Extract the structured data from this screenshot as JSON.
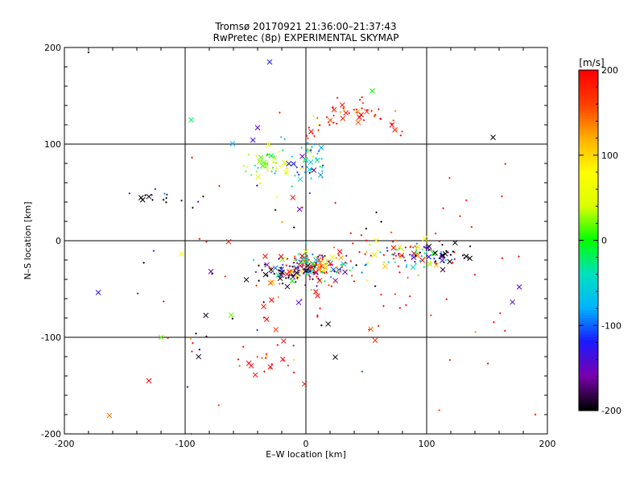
{
  "chart_data": {
    "type": "scatter",
    "title": "Tromsø 20170921 21:36:00–21:37:43",
    "subtitle": "RwPretec (8p) EXPERIMENTAL SKYMAP",
    "xlabel": "E–W location [km]",
    "ylabel": "N–S location [km]",
    "xlim": [
      -200,
      200
    ],
    "ylim": [
      -200,
      200
    ],
    "xticks": [
      -200,
      -100,
      0,
      100,
      200
    ],
    "yticks": [
      -200,
      -100,
      0,
      100,
      200
    ],
    "grid": true,
    "colorbar": {
      "label": "[m/s]",
      "range": [
        -200,
        200
      ],
      "ticks": [
        200,
        100,
        0,
        -100,
        -200
      ],
      "colormap": [
        "#000000",
        "#7a00b0",
        "#1a1aff",
        "#00b4ff",
        "#00e0c0",
        "#00ff00",
        "#d8ff00",
        "#ffff00",
        "#ffb000",
        "#ff4000",
        "#ff0000"
      ]
    },
    "clusters": [
      {
        "name": "northern-arc",
        "cx": 40,
        "cy": 135,
        "sx": 40,
        "sy": 12,
        "v": 190,
        "n": 60
      },
      {
        "name": "north-green",
        "cx": -30,
        "cy": 80,
        "sx": 12,
        "sy": 10,
        "v": 20,
        "n": 55
      },
      {
        "name": "north-blue",
        "cx": 3,
        "cy": 80,
        "sx": 8,
        "sy": 14,
        "v": -90,
        "n": 45
      },
      {
        "name": "center-mixed",
        "cx": 8,
        "cy": -28,
        "sx": 18,
        "sy": 8,
        "v": 30,
        "n": 170
      },
      {
        "name": "center-black",
        "cx": -15,
        "cy": -33,
        "sx": 18,
        "sy": 5,
        "v": -200,
        "n": 40
      },
      {
        "name": "east-cluster",
        "cx": 85,
        "cy": -15,
        "sx": 16,
        "sy": 8,
        "v": 60,
        "n": 100
      },
      {
        "name": "east-black",
        "cx": 110,
        "cy": -12,
        "sx": 12,
        "sy": 6,
        "v": -200,
        "n": 30
      },
      {
        "name": "west-black",
        "cx": -125,
        "cy": 45,
        "sx": 10,
        "sy": 6,
        "v": -200,
        "n": 12
      },
      {
        "name": "south-red",
        "cx": -35,
        "cy": -125,
        "sx": 15,
        "sy": 10,
        "v": 200,
        "n": 20
      },
      {
        "name": "scatter-red",
        "cx": 30,
        "cy": -60,
        "sx": 90,
        "sy": 70,
        "v": 200,
        "n": 90
      },
      {
        "name": "scatter-black",
        "cx": -40,
        "cy": -40,
        "sx": 90,
        "sy": 70,
        "v": -200,
        "n": 40
      }
    ],
    "highlighted_points": [
      {
        "x": -30,
        "y": 185,
        "v": -120,
        "marker": "x"
      },
      {
        "x": 155,
        "y": 107,
        "v": -200,
        "marker": "x"
      },
      {
        "x": -120,
        "y": -100,
        "v": 20,
        "marker": "x"
      },
      {
        "x": 190,
        "y": -180,
        "v": 200,
        "marker": "+"
      },
      {
        "x": -130,
        "y": -145,
        "v": 200,
        "marker": "x"
      },
      {
        "x": -180,
        "y": 195,
        "v": -200,
        "marker": "+"
      },
      {
        "x": 55,
        "y": 155,
        "v": 0,
        "marker": "x"
      },
      {
        "x": -95,
        "y": 125,
        "v": -20,
        "marker": "x"
      },
      {
        "x": -40,
        "y": 117,
        "v": -150,
        "marker": "x"
      },
      {
        "x": -62,
        "y": -77,
        "v": 20,
        "marker": "x"
      },
      {
        "x": -6,
        "y": -64,
        "v": -150,
        "marker": "x"
      }
    ]
  }
}
